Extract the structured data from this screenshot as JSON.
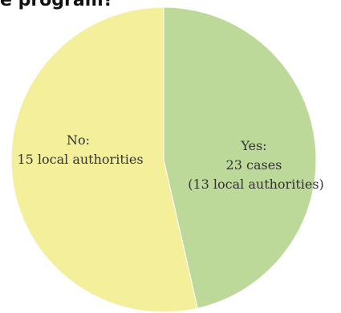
{
  "title": "e program?",
  "chart_data": {
    "type": "pie",
    "slices": [
      {
        "label_lines": [
          "Yes:",
          "23 cases",
          "(13 local authorities)"
        ],
        "value": 13,
        "color": "#bcd99a"
      },
      {
        "label_lines": [
          "No:",
          "15 local authorities"
        ],
        "value": 15,
        "color": "#f4ef9b"
      }
    ]
  }
}
